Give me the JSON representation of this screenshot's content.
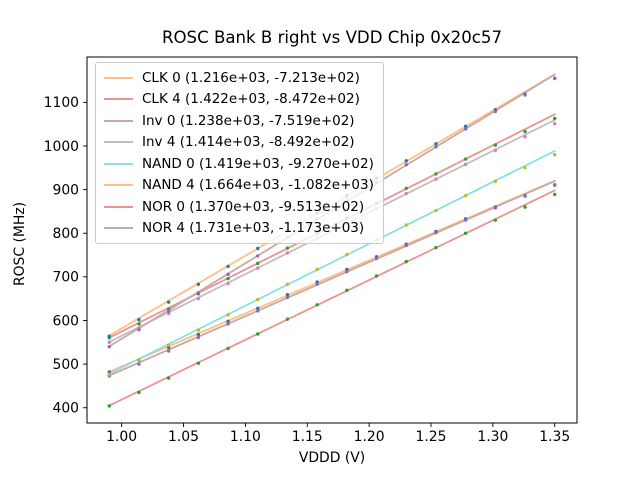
{
  "figure": {
    "background": "#ffffff",
    "text_color": "#000000",
    "legend_border_color": "#cccccc"
  },
  "chart_data": {
    "type": "scatter",
    "subtype": "scatter points with linear fit lines",
    "title": "ROSC Bank B right vs VDD Chip 0x20c57",
    "xlabel": "VDDD (V)",
    "ylabel": "ROSC (MHz)",
    "grid": false,
    "legend_position": "upper-left",
    "xlim": [
      0.972,
      1.368
    ],
    "ylim": [
      365,
      1204
    ],
    "xticks": [
      1.0,
      1.05,
      1.1,
      1.15,
      1.2,
      1.25,
      1.3,
      1.35
    ],
    "xtick_labels": [
      "1.00",
      "1.05",
      "1.10",
      "1.15",
      "1.20",
      "1.25",
      "1.30",
      "1.35"
    ],
    "yticks": [
      400,
      500,
      600,
      700,
      800,
      900,
      1000,
      1100
    ],
    "ytick_labels": [
      "400",
      "500",
      "600",
      "700",
      "800",
      "900",
      "1000",
      "1100"
    ],
    "x": [
      0.99,
      1.014,
      1.038,
      1.062,
      1.086,
      1.11,
      1.134,
      1.158,
      1.182,
      1.206,
      1.23,
      1.254,
      1.278,
      1.302,
      1.326,
      1.35
    ],
    "series": [
      {
        "name": "CLK 0",
        "legend_label": "CLK 0 (1.216e+03, -7.213e+02)",
        "fit_slope": 1216,
        "fit_intercept": -721.3,
        "point_color": "#1f77b4",
        "line_color": "#ffbf86",
        "y": [
          482,
          509,
          538,
          568,
          598,
          628,
          659,
          688,
          717,
          746,
          775,
          804,
          833,
          860,
          886,
          911
        ]
      },
      {
        "name": "CLK 4",
        "legend_label": "CLK 4 (1.422e+03, -8.472e+02)",
        "fit_slope": 1422,
        "fit_intercept": -847.2,
        "point_color": "#2ca02c",
        "line_color": "#ea9393",
        "y": [
          560,
          592,
          626,
          661,
          696,
          731,
          766,
          800,
          835,
          869,
          903,
          936,
          970,
          1002,
          1033,
          1063
        ]
      },
      {
        "name": "Inv 0",
        "legend_label": "Inv 0 (1.238e+03, -7.519e+02)",
        "fit_slope": 1238,
        "fit_intercept": -751.9,
        "point_color": "#9467bd",
        "line_color": "#c5aaa5",
        "y": [
          473,
          500,
          530,
          561,
          592,
          622,
          653,
          683,
          712,
          742,
          772,
          801,
          830,
          858,
          885,
          910
        ]
      },
      {
        "name": "Inv 4",
        "legend_label": "Inv 4 (1.414e+03, -8.492e+02)",
        "fit_slope": 1414,
        "fit_intercept": -849.2,
        "point_color": "#e377c2",
        "line_color": "#bfbfbf",
        "y": [
          550,
          582,
          616,
          650,
          685,
          720,
          755,
          789,
          823,
          857,
          891,
          924,
          958,
          990,
          1021,
          1051
        ]
      },
      {
        "name": "NAND 0",
        "legend_label": "NAND 0 (1.419e+03, -9.270e+02)",
        "fit_slope": 1419,
        "fit_intercept": -927.0,
        "point_color": "#bcbd22",
        "line_color": "#8bdee7",
        "y": [
          477,
          509,
          543,
          578,
          613,
          648,
          683,
          717,
          751,
          785,
          819,
          852,
          886,
          919,
          950,
          980
        ]
      },
      {
        "name": "NAND 4",
        "legend_label": "NAND 4 (1.664e+03, -1.082e+03)",
        "fit_slope": 1664,
        "fit_intercept": -1082,
        "point_color": "#1f77b4",
        "line_color": "#ffbf86",
        "y": [
          564,
          602,
          642,
          683,
          724,
          765,
          806,
          846,
          886,
          926,
          966,
          1005,
          1045,
          1083,
          1119,
          1155
        ]
      },
      {
        "name": "NOR 0",
        "legend_label": "NOR 0 (1.370e+03, -9.513e+02)",
        "fit_slope": 1370,
        "fit_intercept": -951.3,
        "point_color": "#2ca02c",
        "line_color": "#ea9393",
        "y": [
          404,
          435,
          468,
          502,
          536,
          569,
          603,
          636,
          669,
          702,
          735,
          767,
          800,
          830,
          860,
          889
        ]
      },
      {
        "name": "NOR 4",
        "legend_label": "NOR 4 (1.731e+03, -1.173e+03)",
        "fit_slope": 1731,
        "fit_intercept": -1173,
        "point_color": "#9467bd",
        "line_color": "#c5aaa5",
        "y": [
          540,
          579,
          621,
          663,
          706,
          748,
          791,
          833,
          874,
          916,
          957,
          998,
          1039,
          1079,
          1117,
          1155
        ]
      }
    ]
  }
}
